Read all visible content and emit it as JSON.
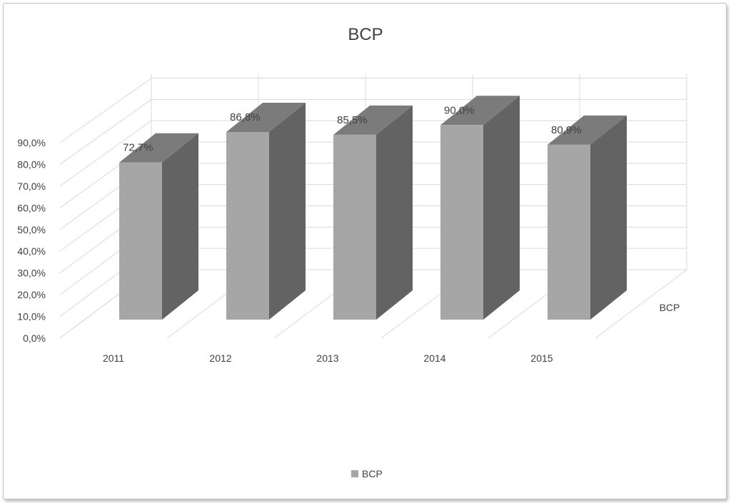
{
  "chart_data": {
    "type": "bar",
    "title": "BCP",
    "categories": [
      "2011",
      "2012",
      "2013",
      "2014",
      "2015"
    ],
    "series": [
      {
        "name": "BCP",
        "values": [
          72.7,
          86.8,
          85.5,
          90.0,
          80.9
        ]
      }
    ],
    "data_labels": [
      "72,7%",
      "86,8%",
      "85,5%",
      "90,0%",
      "80,9%"
    ],
    "ytick_labels": [
      "0,0%",
      "10,0%",
      "20,0%",
      "30,0%",
      "40,0%",
      "50,0%",
      "60,0%",
      "70,0%",
      "80,0%",
      "90,0%"
    ],
    "ylim": [
      0,
      90
    ],
    "depth_axis_label": "BCP",
    "legend": {
      "label": "BCP",
      "position": "bottom"
    },
    "grid": true,
    "style": "3d-column",
    "colors": {
      "bar_front": "#a6a6a6",
      "bar_side": "#636363",
      "bar_top": "#7b7b7b",
      "grid": "#d9d9d9",
      "text": "#404040"
    }
  }
}
